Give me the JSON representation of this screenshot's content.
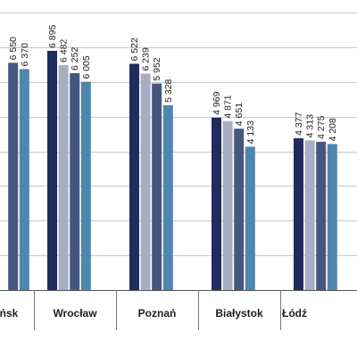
{
  "chart_data": {
    "type": "bar",
    "title": "",
    "xlabel": "",
    "ylabel": "",
    "ylim": [
      0,
      8000
    ],
    "grid": true,
    "legend": "none",
    "categories": [
      "Gdańsk",
      "Wrocław",
      "Poznań",
      "Białystok",
      "Łódź"
    ],
    "category_labels": [
      "ńsk",
      "Wrocław",
      "Poznań",
      "Białystok",
      "Łódź"
    ],
    "series": [
      {
        "color": "#1f2c5c",
        "values": [
          null,
          6895,
          6522,
          4969,
          4377
        ]
      },
      {
        "color": "#a7aec2",
        "values": [
          null,
          6482,
          6239,
          4871,
          4313
        ]
      },
      {
        "color": "#46577f",
        "values": [
          6550,
          6252,
          5952,
          4651,
          4275
        ]
      },
      {
        "color": "#4f86ad",
        "values": [
          6370,
          6005,
          5328,
          4133,
          4208
        ]
      }
    ],
    "value_labels": [
      [
        null,
        "6 895",
        "6 522",
        "4 969",
        "4 377"
      ],
      [
        null,
        "6 482",
        "6 239",
        "4 871",
        "4 313"
      ],
      [
        "6 550",
        "6 252",
        "5 952",
        "4 651",
        "4 275"
      ],
      [
        "6 370",
        "6 005",
        "5 328",
        "4 133",
        "4 208"
      ]
    ]
  }
}
